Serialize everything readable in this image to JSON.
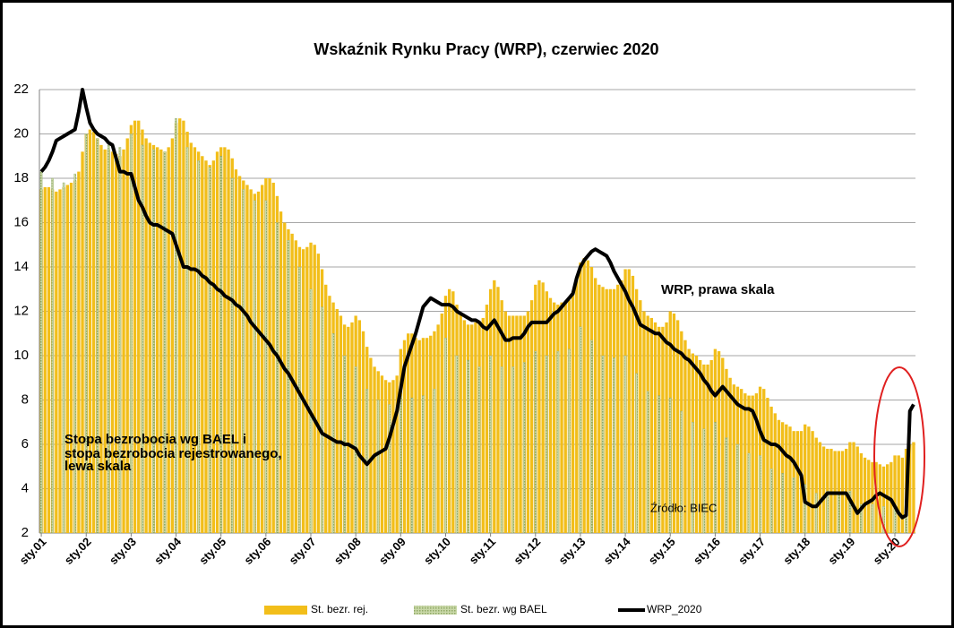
{
  "chart_data": {
    "type": "bar",
    "title": "Wskaźnik Rynku Pracy (WRP), czerwiec 2020",
    "annotations": [
      {
        "text": "WRP, prawa skala"
      },
      {
        "lines": [
          "Stopa bezrobocia wg BAEL i",
          "stopa bezrobocia rejestrowanego,",
          "lewa skala"
        ]
      },
      {
        "text": "Źródło: BIEC"
      }
    ],
    "ylim": [
      2,
      22
    ],
    "yticks": [
      2,
      4,
      6,
      8,
      10,
      12,
      14,
      16,
      18,
      20,
      22
    ],
    "grid": true,
    "legend": "bottom",
    "categories": [
      "sty.01",
      null,
      null,
      null,
      null,
      null,
      null,
      null,
      null,
      null,
      null,
      null,
      "sty.02",
      null,
      null,
      null,
      null,
      null,
      null,
      null,
      null,
      null,
      null,
      null,
      "sty.03",
      null,
      null,
      null,
      null,
      null,
      null,
      null,
      null,
      null,
      null,
      null,
      "sty.04",
      null,
      null,
      null,
      null,
      null,
      null,
      null,
      null,
      null,
      null,
      null,
      "sty.05",
      null,
      null,
      null,
      null,
      null,
      null,
      null,
      null,
      null,
      null,
      null,
      "sty.06",
      null,
      null,
      null,
      null,
      null,
      null,
      null,
      null,
      null,
      null,
      null,
      "sty.07",
      null,
      null,
      null,
      null,
      null,
      null,
      null,
      null,
      null,
      null,
      null,
      "sty.08",
      null,
      null,
      null,
      null,
      null,
      null,
      null,
      null,
      null,
      null,
      null,
      "sty.09",
      null,
      null,
      null,
      null,
      null,
      null,
      null,
      null,
      null,
      null,
      null,
      "sty.10",
      null,
      null,
      null,
      null,
      null,
      null,
      null,
      null,
      null,
      null,
      null,
      "sty.11",
      null,
      null,
      null,
      null,
      null,
      null,
      null,
      null,
      null,
      null,
      null,
      "sty.12",
      null,
      null,
      null,
      null,
      null,
      null,
      null,
      null,
      null,
      null,
      null,
      "sty.13",
      null,
      null,
      null,
      null,
      null,
      null,
      null,
      null,
      null,
      null,
      null,
      "sty.14",
      null,
      null,
      null,
      null,
      null,
      null,
      null,
      null,
      null,
      null,
      null,
      "sty.15",
      null,
      null,
      null,
      null,
      null,
      null,
      null,
      null,
      null,
      null,
      null,
      "sty.16",
      null,
      null,
      null,
      null,
      null,
      null,
      null,
      null,
      null,
      null,
      null,
      "sty.17",
      null,
      null,
      null,
      null,
      null,
      null,
      null,
      null,
      null,
      null,
      null,
      "sty.18",
      null,
      null,
      null,
      null,
      null,
      null,
      null,
      null,
      null,
      null,
      null,
      "sty.19",
      null,
      null,
      null,
      null,
      null,
      null,
      null,
      null,
      null,
      null,
      null,
      "sty.20",
      null,
      null,
      null,
      null,
      null
    ],
    "series": [
      {
        "name": "St. bezr. rej.",
        "type": "bar",
        "color": "#f2be1a",
        "values": [
          17.5,
          17.6,
          17.6,
          17.5,
          17.4,
          17.5,
          17.6,
          17.7,
          17.8,
          17.9,
          18.3,
          19.2,
          20.0,
          20.2,
          20.1,
          19.8,
          19.5,
          19.3,
          19.3,
          19.2,
          19.1,
          19.0,
          19.3,
          19.8,
          20.4,
          20.6,
          20.6,
          20.2,
          19.8,
          19.6,
          19.5,
          19.4,
          19.3,
          19.2,
          19.4,
          19.8,
          20.5,
          20.7,
          20.6,
          20.1,
          19.6,
          19.4,
          19.2,
          19.0,
          18.8,
          18.6,
          18.8,
          19.2,
          19.4,
          19.4,
          19.3,
          18.9,
          18.4,
          18.1,
          17.9,
          17.7,
          17.5,
          17.3,
          17.4,
          17.7,
          18.0,
          18.0,
          17.8,
          17.2,
          16.5,
          16.0,
          15.7,
          15.5,
          15.2,
          14.9,
          14.8,
          14.9,
          15.1,
          15.0,
          14.6,
          13.9,
          13.2,
          12.7,
          12.4,
          12.1,
          11.8,
          11.4,
          11.3,
          11.5,
          11.8,
          11.6,
          11.1,
          10.4,
          9.9,
          9.5,
          9.3,
          9.1,
          8.9,
          8.8,
          8.9,
          9.1,
          10.3,
          10.7,
          11.0,
          11.0,
          10.8,
          10.7,
          10.8,
          10.8,
          10.9,
          11.1,
          11.4,
          11.9,
          12.7,
          13.0,
          12.9,
          12.3,
          11.9,
          11.6,
          11.4,
          11.4,
          11.5,
          11.5,
          11.7,
          12.3,
          13.0,
          13.4,
          13.1,
          12.5,
          12.0,
          11.8,
          11.8,
          11.8,
          11.8,
          11.8,
          12.0,
          12.5,
          13.2,
          13.4,
          13.3,
          12.9,
          12.6,
          12.4,
          12.3,
          12.4,
          12.4,
          12.5,
          12.9,
          13.4,
          14.2,
          14.4,
          14.3,
          14.0,
          13.5,
          13.2,
          13.1,
          13.0,
          13.0,
          13.0,
          13.2,
          13.4,
          13.9,
          13.9,
          13.6,
          13.0,
          12.5,
          12.0,
          11.8,
          11.7,
          11.5,
          11.3,
          11.3,
          11.5,
          12.0,
          11.9,
          11.6,
          11.1,
          10.7,
          10.3,
          10.1,
          10.0,
          9.8,
          9.6,
          9.6,
          9.8,
          10.3,
          10.2,
          9.9,
          9.4,
          9.0,
          8.7,
          8.6,
          8.5,
          8.3,
          8.2,
          8.2,
          8.3,
          8.6,
          8.5,
          8.1,
          7.7,
          7.4,
          7.1,
          7.0,
          6.9,
          6.8,
          6.6,
          6.6,
          6.6,
          6.9,
          6.8,
          6.6,
          6.3,
          6.1,
          5.9,
          5.8,
          5.8,
          5.7,
          5.7,
          5.7,
          5.8,
          6.1,
          6.1,
          5.9,
          5.6,
          5.4,
          5.3,
          5.2,
          5.2,
          5.1,
          5.0,
          5.1,
          5.2,
          5.5,
          5.5,
          5.4,
          5.8,
          6.0,
          6.1
        ]
      },
      {
        "name": "St. bezr. wg BAEL",
        "type": "bar",
        "color": "#8fa865",
        "values": [
          18.3,
          null,
          null,
          18.0,
          null,
          null,
          17.8,
          null,
          null,
          18.2,
          null,
          null,
          20.0,
          null,
          null,
          19.8,
          null,
          null,
          19.5,
          null,
          null,
          19.4,
          null,
          null,
          20.0,
          null,
          null,
          19.5,
          null,
          null,
          19.3,
          null,
          null,
          19.2,
          null,
          null,
          20.7,
          null,
          null,
          19.4,
          null,
          null,
          18.8,
          null,
          null,
          18.5,
          null,
          null,
          19.0,
          null,
          null,
          18.0,
          null,
          null,
          17.5,
          null,
          null,
          17.0,
          null,
          null,
          17.0,
          null,
          null,
          16.0,
          null,
          null,
          15.2,
          null,
          null,
          14.0,
          null,
          null,
          13.0,
          null,
          null,
          12.2,
          null,
          null,
          11.0,
          null,
          null,
          10.0,
          null,
          null,
          9.5,
          null,
          null,
          8.5,
          null,
          null,
          8.0,
          null,
          null,
          7.8,
          null,
          null,
          8.2,
          null,
          null,
          8.1,
          null,
          null,
          8.2,
          null,
          null,
          8.5,
          null,
          null,
          10.8,
          null,
          null,
          10.0,
          null,
          null,
          9.8,
          null,
          null,
          9.5,
          null,
          null,
          10.0,
          null,
          null,
          9.5,
          null,
          null,
          9.5,
          null,
          null,
          9.7,
          null,
          null,
          10.2,
          null,
          null,
          10.0,
          null,
          null,
          10.2,
          null,
          null,
          10.3,
          null,
          null,
          11.3,
          null,
          null,
          10.7,
          null,
          null,
          10.0,
          null,
          null,
          9.9,
          null,
          null,
          10.0,
          null,
          null,
          9.2,
          null,
          null,
          8.4,
          null,
          null,
          8.2,
          null,
          null,
          8.1,
          null,
          null,
          7.5,
          null,
          null,
          7.0,
          null,
          null,
          6.7,
          null,
          null,
          7.0,
          null,
          null,
          6.3,
          null,
          null,
          6.0,
          null,
          null,
          5.6,
          null,
          null,
          5.5,
          null,
          null,
          4.9,
          null,
          null,
          4.7,
          null,
          null,
          4.5,
          null,
          null,
          4.2,
          null,
          null,
          3.8,
          null,
          null,
          3.9,
          null,
          null,
          3.8,
          null,
          null,
          3.9,
          null,
          null,
          3.3,
          null,
          null,
          3.3,
          null,
          null,
          3.2,
          null,
          null,
          3.1,
          null,
          null,
          3.1,
          null,
          null
        ]
      },
      {
        "name": "WRP_2020",
        "type": "line",
        "color": "#000000",
        "values": [
          18.3,
          18.5,
          18.8,
          19.2,
          19.7,
          19.8,
          19.9,
          20.0,
          20.1,
          20.2,
          21.0,
          22.0,
          21.2,
          20.5,
          20.2,
          20.0,
          19.9,
          19.8,
          19.6,
          19.5,
          18.9,
          18.3,
          18.3,
          18.2,
          18.2,
          17.6,
          17.0,
          16.7,
          16.3,
          16.0,
          15.9,
          15.9,
          15.8,
          15.7,
          15.6,
          15.5,
          15.0,
          14.5,
          14.0,
          14.0,
          13.9,
          13.9,
          13.8,
          13.6,
          13.5,
          13.3,
          13.2,
          13.0,
          12.9,
          12.7,
          12.6,
          12.5,
          12.3,
          12.2,
          12.0,
          11.8,
          11.5,
          11.3,
          11.1,
          10.9,
          10.7,
          10.5,
          10.2,
          10.0,
          9.7,
          9.4,
          9.2,
          8.9,
          8.6,
          8.3,
          8.0,
          7.7,
          7.4,
          7.1,
          6.8,
          6.5,
          6.4,
          6.3,
          6.2,
          6.1,
          6.1,
          6.0,
          6.0,
          5.9,
          5.8,
          5.5,
          5.3,
          5.1,
          5.3,
          5.5,
          5.6,
          5.7,
          5.8,
          6.3,
          6.9,
          7.5,
          8.5,
          9.5,
          10.0,
          10.5,
          11.0,
          11.6,
          12.2,
          12.4,
          12.6,
          12.5,
          12.4,
          12.3,
          12.3,
          12.3,
          12.2,
          12.0,
          11.9,
          11.8,
          11.7,
          11.6,
          11.6,
          11.5,
          11.3,
          11.2,
          11.4,
          11.6,
          11.3,
          11.0,
          10.7,
          10.7,
          10.8,
          10.8,
          10.8,
          11.0,
          11.3,
          11.5,
          11.5,
          11.5,
          11.5,
          11.5,
          11.7,
          11.9,
          12.0,
          12.2,
          12.4,
          12.6,
          12.8,
          13.5,
          14.0,
          14.3,
          14.5,
          14.7,
          14.8,
          14.7,
          14.6,
          14.5,
          14.2,
          13.8,
          13.5,
          13.2,
          12.9,
          12.5,
          12.2,
          11.8,
          11.4,
          11.3,
          11.2,
          11.1,
          11.0,
          11.0,
          10.8,
          10.6,
          10.5,
          10.3,
          10.2,
          10.1,
          9.9,
          9.8,
          9.6,
          9.4,
          9.2,
          8.9,
          8.7,
          8.4,
          8.2,
          8.4,
          8.6,
          8.4,
          8.2,
          8.0,
          7.8,
          7.7,
          7.6,
          7.6,
          7.5,
          7.1,
          6.6,
          6.2,
          6.1,
          6.0,
          6.0,
          5.9,
          5.7,
          5.5,
          5.4,
          5.2,
          4.9,
          4.6,
          3.4,
          3.3,
          3.2,
          3.2,
          3.4,
          3.6,
          3.8,
          3.8,
          3.8,
          3.8,
          3.8,
          3.8,
          3.5,
          3.2,
          2.9,
          3.1,
          3.3,
          3.4,
          3.5,
          3.7,
          3.8,
          3.7,
          3.6,
          3.5,
          3.2,
          2.9,
          2.7,
          2.8,
          7.5,
          7.8
        ]
      }
    ]
  }
}
